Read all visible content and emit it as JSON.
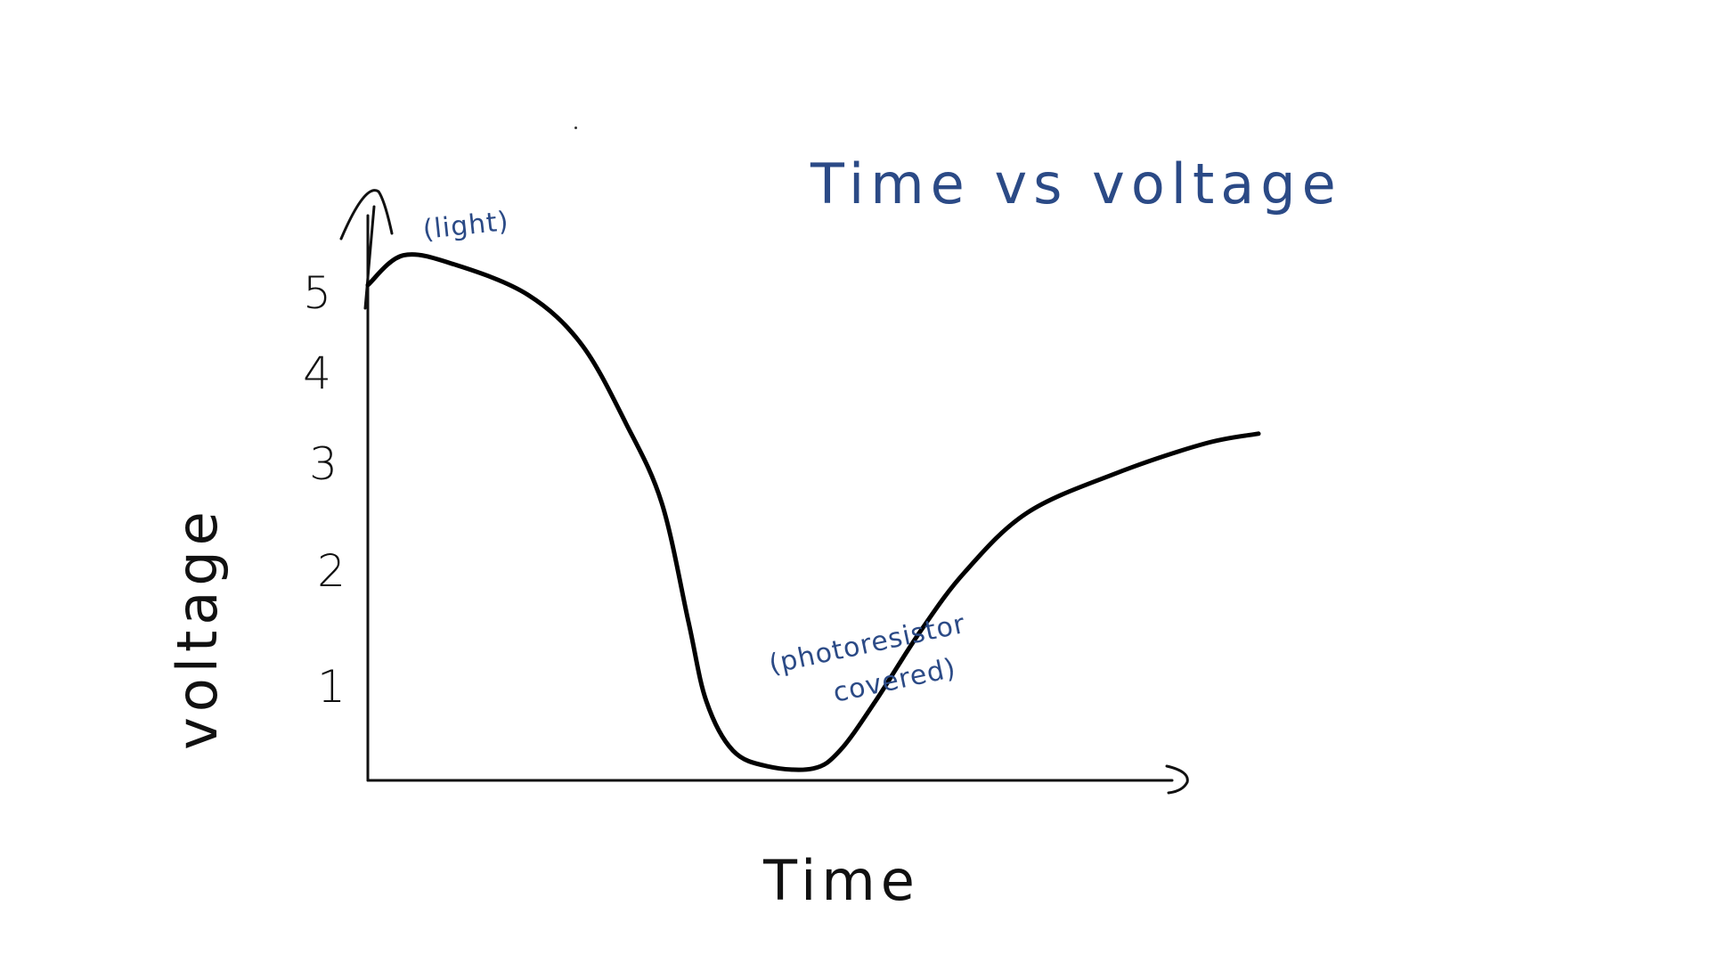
{
  "chart_data": {
    "type": "line",
    "title": "Time vs voltage",
    "xlabel": "Time",
    "ylabel": "voltage",
    "y_ticks": [
      "5",
      "4",
      "3",
      "2",
      "1"
    ],
    "ylim": [
      0,
      5.5
    ],
    "xlim": [
      0,
      1
    ],
    "grid": false,
    "series": [
      {
        "x": [
          0.0,
          0.04,
          0.1,
          0.18,
          0.24,
          0.29,
          0.33,
          0.36,
          0.38,
          0.41,
          0.45,
          0.5,
          0.53,
          0.57,
          0.62,
          0.67,
          0.74,
          0.84,
          0.94,
          1.0
        ],
        "values": [
          5.0,
          5.3,
          5.2,
          4.9,
          4.4,
          3.6,
          2.8,
          1.6,
          0.8,
          0.3,
          0.14,
          0.12,
          0.3,
          0.8,
          1.5,
          2.1,
          2.7,
          3.1,
          3.4,
          3.5
        ]
      }
    ],
    "annotations": [
      {
        "text": "(light)",
        "x": 0.1,
        "y": 5.3
      },
      {
        "text": "(photoresistor",
        "x": 0.5,
        "y": 0.12
      },
      {
        "text": "covered)",
        "x": 0.5,
        "y": 0.12
      }
    ],
    "colors": {
      "title": "#2b4a86",
      "annotation": "#2b4a86",
      "axis": "#111111",
      "line": "#000000"
    }
  }
}
